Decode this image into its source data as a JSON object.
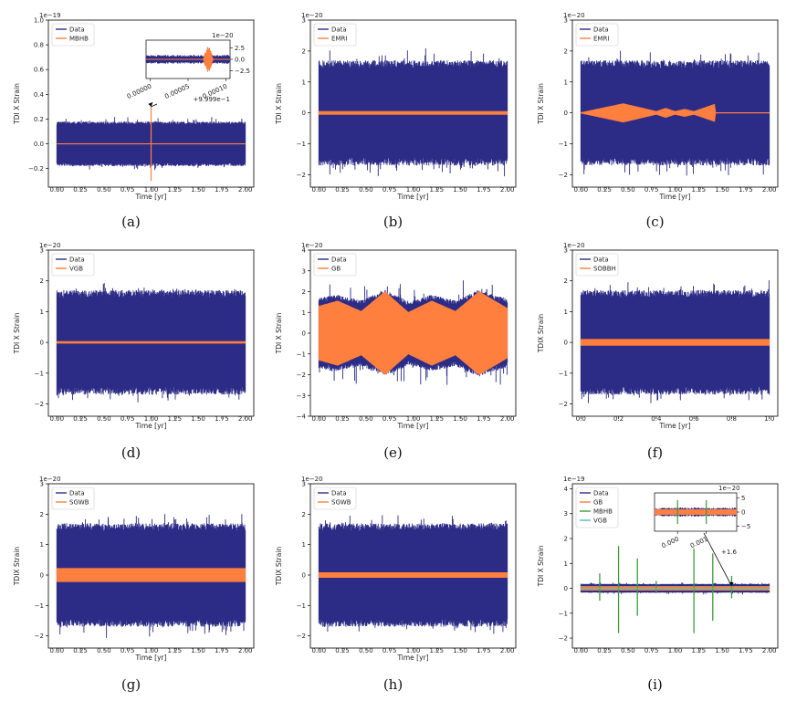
{
  "colors": {
    "data": "#2c2c86",
    "orange": "#ff7f3f",
    "green": "#3d9a3d",
    "teal": "#5fb8b0"
  },
  "chart_data": [
    {
      "id": "a",
      "type": "line",
      "caption": "(a)",
      "ylabel": "TDI X Strain",
      "xlabel": "Time [yr]",
      "offset": "1e−19",
      "xlim": [
        -0.09,
        2.09
      ],
      "ylim": [
        -0.35,
        1.0
      ],
      "xticks": [
        0,
        0.25,
        0.5,
        0.75,
        1.0,
        1.25,
        1.5,
        1.75,
        2.0
      ],
      "xticklabels": [
        "0.00",
        "0.25",
        "0.50",
        "0.75",
        "1.00",
        "1.25",
        "1.50",
        "1.75",
        "2.00"
      ],
      "yticks": [
        -0.2,
        0,
        0.2,
        0.4,
        0.6,
        0.8,
        1.0
      ],
      "yticklabels": [
        "−0.2",
        "0.0",
        "0.2",
        "0.4",
        "0.6",
        "0.8",
        "1.0"
      ],
      "noise": 0.18,
      "noise_spike": 0.22,
      "legend": [
        "Data",
        "MBHB"
      ],
      "series": [
        {
          "name": "Data",
          "color": "data",
          "kind": "noise"
        },
        {
          "name": "MBHB",
          "color": "orange",
          "kind": "flat_spike",
          "level": 0,
          "spike_x": 1.0,
          "spike_amp": 0.3
        }
      ],
      "inset": {
        "offset": "1e−20",
        "yticklabels": [
          "2.5",
          "0.0",
          "−2.5"
        ],
        "xticklabels": [
          "0.00000",
          "0.00005",
          "0.00010"
        ],
        "xoffset": "+9.999e−1"
      }
    },
    {
      "id": "b",
      "type": "line",
      "caption": "(b)",
      "ylabel": "TDI X Strain",
      "xlabel": "Time [yr]",
      "offset": "1e−20",
      "xlim": [
        -0.09,
        2.09
      ],
      "ylim": [
        -2.4,
        3.0
      ],
      "xticks": [
        0,
        0.25,
        0.5,
        0.75,
        1.0,
        1.25,
        1.5,
        1.75,
        2.0
      ],
      "xticklabels": [
        "0.00",
        "0.25",
        "0.50",
        "0.75",
        "1.00",
        "1.25",
        "1.50",
        "1.75",
        "2.00"
      ],
      "yticks": [
        -2,
        -1,
        0,
        1,
        2,
        3
      ],
      "yticklabels": [
        "−2",
        "−1",
        "0",
        "1",
        "2",
        "3"
      ],
      "noise": 1.7,
      "noise_spike": 2.1,
      "legend": [
        "Data",
        "EMRI"
      ],
      "series": [
        {
          "name": "Data",
          "color": "data",
          "kind": "noise"
        },
        {
          "name": "EMRI",
          "color": "orange",
          "kind": "band",
          "amps": [
            [
              0,
              0.05
            ],
            [
              2,
              0.05
            ]
          ]
        }
      ]
    },
    {
      "id": "c",
      "type": "line",
      "caption": "(c)",
      "ylabel": "TDI X Strain",
      "xlabel": "Time [yr]",
      "offset": "1e−20",
      "xlim": [
        -0.09,
        2.09
      ],
      "ylim": [
        -2.4,
        3.0
      ],
      "xticks": [
        0,
        0.25,
        0.5,
        0.75,
        1.0,
        1.25,
        1.5,
        1.75,
        2.0
      ],
      "xticklabels": [
        "0.00",
        "0.25",
        "0.50",
        "0.75",
        "1.00",
        "1.25",
        "1.50",
        "1.75",
        "2.00"
      ],
      "yticks": [
        -2,
        -1,
        0,
        1,
        2,
        3
      ],
      "yticklabels": [
        "−2",
        "−1",
        "0",
        "1",
        "2",
        "3"
      ],
      "noise": 1.7,
      "noise_spike": 2.1,
      "legend": [
        "Data",
        "EMRI"
      ],
      "series": [
        {
          "name": "Data",
          "color": "data",
          "kind": "noise"
        },
        {
          "name": "EMRI",
          "color": "orange",
          "kind": "band",
          "amps": [
            [
              0,
              0.01
            ],
            [
              0.45,
              0.3
            ],
            [
              0.8,
              0.05
            ],
            [
              0.9,
              0.15
            ],
            [
              1.0,
              0.05
            ],
            [
              1.1,
              0.12
            ],
            [
              1.2,
              0.05
            ],
            [
              1.42,
              0.28
            ],
            [
              1.43,
              0.01
            ],
            [
              2.0,
              0.01
            ]
          ]
        }
      ]
    },
    {
      "id": "d",
      "type": "line",
      "caption": "(d)",
      "ylabel": "TDI X Strain",
      "xlabel": "Time [yr]",
      "offset": "1e−20",
      "xlim": [
        -0.09,
        2.09
      ],
      "ylim": [
        -2.4,
        3.0
      ],
      "xticks": [
        0,
        0.25,
        0.5,
        0.75,
        1.0,
        1.25,
        1.5,
        1.75,
        2.0
      ],
      "xticklabels": [
        "0.00",
        "0.25",
        "0.50",
        "0.75",
        "1.00",
        "1.25",
        "1.50",
        "1.75",
        "2.00"
      ],
      "yticks": [
        -2,
        -1,
        0,
        1,
        2,
        3
      ],
      "yticklabels": [
        "−2",
        "−1",
        "0",
        "1",
        "2",
        "3"
      ],
      "noise": 1.7,
      "noise_spike": 2.0,
      "legend": [
        "Data",
        "VGB"
      ],
      "series": [
        {
          "name": "Data",
          "color": "data",
          "kind": "noise"
        },
        {
          "name": "VGB",
          "color": "orange",
          "kind": "band",
          "amps": [
            [
              0,
              0.03
            ],
            [
              2,
              0.03
            ]
          ]
        }
      ]
    },
    {
      "id": "e",
      "type": "line",
      "caption": "(e)",
      "ylabel": "TDI X Strain",
      "xlabel": "Time [yr]",
      "offset": "1e−20",
      "xlim": [
        -0.09,
        2.09
      ],
      "ylim": [
        -4.0,
        4.0
      ],
      "xticks": [
        0,
        0.25,
        0.5,
        0.75,
        1.0,
        1.25,
        1.5,
        1.75,
        2.0
      ],
      "xticklabels": [
        "0.00",
        "0.25",
        "0.50",
        "0.75",
        "1.00",
        "1.25",
        "1.50",
        "1.75",
        "2.00"
      ],
      "yticks": [
        -4,
        -3,
        -2,
        -1,
        0,
        1,
        2,
        3,
        4
      ],
      "yticklabels": [
        "−4",
        "−3",
        "−2",
        "−1",
        "0",
        "1",
        "2",
        "3",
        "4"
      ],
      "noise": 1.9,
      "noise_spike": 2.6,
      "noise_modulated": true,
      "legend": [
        "Data",
        "GB"
      ],
      "series": [
        {
          "name": "Data",
          "color": "data",
          "kind": "noise"
        },
        {
          "name": "GB",
          "color": "orange",
          "kind": "band",
          "amps": [
            [
              0,
              1.3
            ],
            [
              0.2,
              1.55
            ],
            [
              0.45,
              1.05
            ],
            [
              0.7,
              2.0
            ],
            [
              0.95,
              1.0
            ],
            [
              1.2,
              1.55
            ],
            [
              1.45,
              1.05
            ],
            [
              1.7,
              2.0
            ],
            [
              2.0,
              1.2
            ]
          ]
        }
      ]
    },
    {
      "id": "f",
      "type": "line",
      "caption": "(f)",
      "ylabel": "TDIX Strain",
      "xlabel": "Time [yr]",
      "offset": "1e−20",
      "xlim": [
        -0.045,
        1.045
      ],
      "ylim": [
        -2.4,
        3.0
      ],
      "xticks": [
        0,
        0.2,
        0.4,
        0.6,
        0.8,
        1.0
      ],
      "xticklabels": [
        "0.0",
        "0.2",
        "0.4",
        "0.6",
        "0.8",
        "1.0"
      ],
      "yticks": [
        -2,
        -1,
        0,
        1,
        2,
        3
      ],
      "yticklabels": [
        "−2",
        "−1",
        "0",
        "1",
        "2",
        "3"
      ],
      "noise": 1.7,
      "noise_spike": 2.1,
      "legend": [
        "Data",
        "SOBBH"
      ],
      "series": [
        {
          "name": "Data",
          "color": "data",
          "kind": "noise"
        },
        {
          "name": "SOBBH",
          "color": "orange",
          "kind": "band",
          "amps": [
            [
              0,
              0.1
            ],
            [
              1,
              0.1
            ]
          ]
        }
      ]
    },
    {
      "id": "g",
      "type": "line",
      "caption": "(g)",
      "ylabel": "TDIX Strain",
      "xlabel": "Time [yr]",
      "offset": "1e−20",
      "xlim": [
        -0.09,
        2.09
      ],
      "ylim": [
        -2.4,
        3.0
      ],
      "xticks": [
        0,
        0.25,
        0.5,
        0.75,
        1.0,
        1.25,
        1.5,
        1.75,
        2.0
      ],
      "xticklabels": [
        "0.00",
        "0.25",
        "0.50",
        "0.75",
        "1.00",
        "1.25",
        "1.50",
        "1.75",
        "2.00"
      ],
      "yticks": [
        -2,
        -1,
        0,
        1,
        2,
        3
      ],
      "yticklabels": [
        "−2",
        "−1",
        "0",
        "1",
        "2",
        "3"
      ],
      "noise": 1.7,
      "noise_spike": 2.1,
      "legend": [
        "Data",
        "SGWB"
      ],
      "series": [
        {
          "name": "Data",
          "color": "data",
          "kind": "noise"
        },
        {
          "name": "SGWB",
          "color": "orange",
          "kind": "band",
          "amps": [
            [
              0,
              0.22
            ],
            [
              2,
              0.22
            ]
          ]
        }
      ]
    },
    {
      "id": "h",
      "type": "line",
      "caption": "(h)",
      "ylabel": "TDIX Strain",
      "xlabel": "Time [yr]",
      "offset": "1e−20",
      "xlim": [
        -0.09,
        2.09
      ],
      "ylim": [
        -2.4,
        3.0
      ],
      "xticks": [
        0,
        0.25,
        0.5,
        0.75,
        1.0,
        1.25,
        1.5,
        1.75,
        2.0
      ],
      "xticklabels": [
        "0.00",
        "0.25",
        "0.50",
        "0.75",
        "1.00",
        "1.25",
        "1.50",
        "1.75",
        "2.00"
      ],
      "yticks": [
        -2,
        -1,
        0,
        1,
        2,
        3
      ],
      "yticklabels": [
        "−2",
        "−1",
        "0",
        "1",
        "2",
        "3"
      ],
      "noise": 1.7,
      "noise_spike": 2.0,
      "legend": [
        "Data",
        "SGWB"
      ],
      "series": [
        {
          "name": "Data",
          "color": "data",
          "kind": "noise"
        },
        {
          "name": "SGWB",
          "color": "orange",
          "kind": "band",
          "amps": [
            [
              0,
              0.08
            ],
            [
              2,
              0.08
            ]
          ]
        }
      ]
    },
    {
      "id": "i",
      "type": "line",
      "caption": "(i)",
      "ylabel": "TDI X Strain",
      "xlabel": "",
      "offset": "1e−19",
      "xlim": [
        -0.09,
        2.09
      ],
      "ylim": [
        -2.4,
        4.2
      ],
      "xticks": [
        0,
        0.25,
        0.5,
        0.75,
        1.0,
        1.25,
        1.5,
        1.75,
        2.0
      ],
      "xticklabels": [
        "0.00",
        "0.25",
        "0.50",
        "0.75",
        "1.00",
        "1.25",
        "1.50",
        "1.75",
        "2.00"
      ],
      "yticks": [
        -2,
        -1,
        0,
        1,
        2,
        3,
        4
      ],
      "yticklabels": [
        "−2",
        "−1",
        "0",
        "1",
        "2",
        "3",
        "4"
      ],
      "noise": 0.18,
      "noise_spike": 0.25,
      "legend": [
        "Data",
        "GB",
        "MBHB",
        "VGB"
      ],
      "series": [
        {
          "name": "Data",
          "color": "data",
          "kind": "noise"
        },
        {
          "name": "GB",
          "color": "orange",
          "kind": "band",
          "amps": [
            [
              0,
              0.08
            ],
            [
              2,
              0.08
            ]
          ]
        },
        {
          "name": "MBHB",
          "color": "green",
          "kind": "spikes",
          "spikes": [
            [
              0.2,
              0.6,
              -0.5
            ],
            [
              0.4,
              1.7,
              -1.8
            ],
            [
              0.6,
              1.2,
              -1.1
            ],
            [
              0.8,
              0.3,
              -0.2
            ],
            [
              1.2,
              1.6,
              -1.8
            ],
            [
              1.4,
              1.4,
              -1.3
            ],
            [
              1.6,
              0.5,
              -0.4
            ]
          ]
        },
        {
          "name": "VGB",
          "color": "teal",
          "kind": "band",
          "amps": [
            [
              0,
              0.02
            ],
            [
              2,
              0.02
            ]
          ]
        }
      ],
      "inset": {
        "offset": "1e−20",
        "yticklabels": [
          "5",
          "0",
          "−5"
        ],
        "xticklabels": [
          "0.000",
          "0.001"
        ],
        "xoffset": "+1.6"
      }
    }
  ]
}
